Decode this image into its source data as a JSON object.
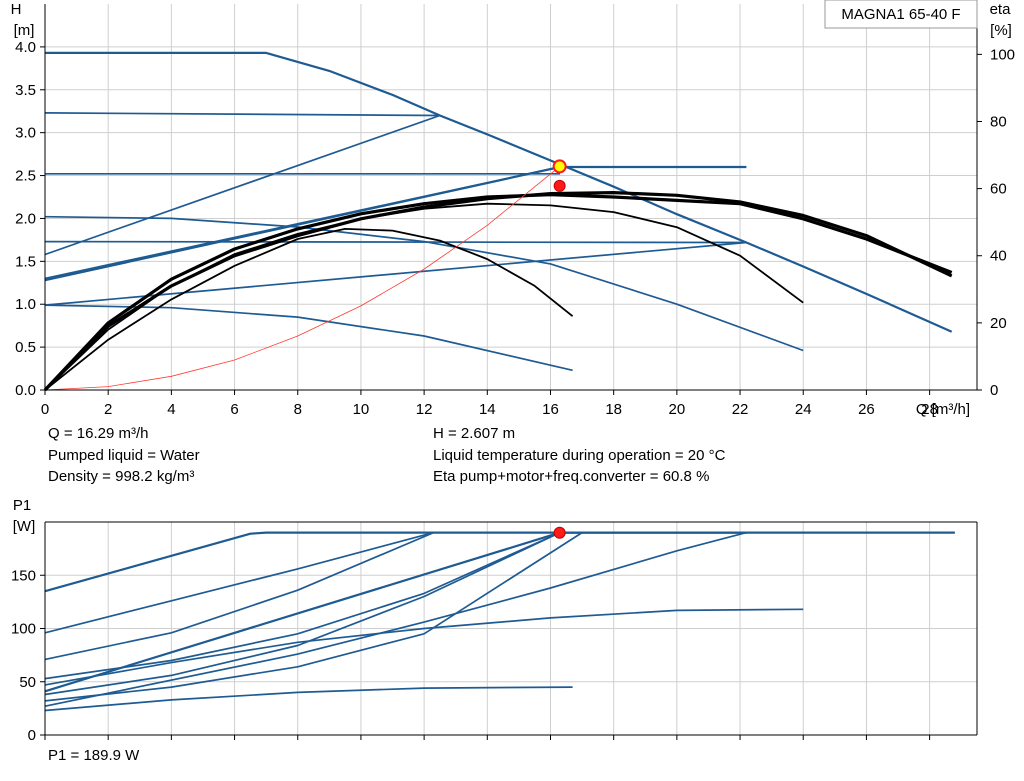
{
  "model_label": "MAGNA1 65-40 F",
  "info": {
    "q": "Q = 16.29 m³/h",
    "h": "H = 2.607 m",
    "liquid": "Pumped liquid = Water",
    "temperature": "Liquid temperature during operation = 20 °C",
    "density": "Density = 998.2 kg/m³",
    "eta": "Eta pump+motor+freq.converter = 60.8 %",
    "p1": "P1 = 189.9 W"
  },
  "chart_data": [
    {
      "type": "line",
      "title": "",
      "xlabel": "Q [m³/h]",
      "ylabel": [
        "H",
        "[m]"
      ],
      "y2label": [
        "eta",
        "[%]"
      ],
      "xlim": [
        0,
        29.5
      ],
      "ylim": [
        0,
        4.5
      ],
      "y2lim": [
        0,
        115
      ],
      "xticks": [
        "0",
        "2",
        "4",
        "6",
        "8",
        "10",
        "12",
        "14",
        "16",
        "18",
        "20",
        "22",
        "24",
        "26",
        "28"
      ],
      "yticks": [
        "0.0",
        "0.5",
        "1.0",
        "1.5",
        "2.0",
        "2.5",
        "3.0",
        "3.5",
        "4.0"
      ],
      "y2ticks": [
        "0",
        "20",
        "40",
        "60",
        "80",
        "100"
      ],
      "grid": true,
      "colors": {
        "curve": "#1f5b93",
        "eta": "#000000",
        "system": "#ff3b30",
        "point": "#ff1a1a",
        "point_fill_duty": "#ffff00"
      },
      "head_curves": [
        {
          "x": [
            0,
            7,
            9,
            11,
            12.5,
            14,
            16.5,
            18,
            20,
            22.2,
            24,
            26,
            28.7
          ],
          "y": [
            3.93,
            3.93,
            3.72,
            3.44,
            3.2,
            2.98,
            2.6,
            2.37,
            2.05,
            1.72,
            1.44,
            1.12,
            0.68
          ]
        },
        {
          "x": [
            0,
            12.5
          ],
          "y": [
            3.23,
            3.2
          ]
        },
        {
          "x": [
            0,
            16.3
          ],
          "y": [
            2.52,
            2.52
          ]
        },
        {
          "x": [
            0,
            22.2
          ],
          "y": [
            1.73,
            1.72
          ]
        },
        {
          "x": [
            0,
            12.5
          ],
          "y": [
            1.58,
            3.2
          ]
        },
        {
          "x": [
            0,
            16.3
          ],
          "y": [
            1.3,
            2.6
          ]
        },
        {
          "x": [
            0,
            22.2
          ],
          "y": [
            0.99,
            1.72
          ]
        },
        {
          "x": [
            0,
            16.3,
            22.2
          ],
          "y": [
            1.28,
            2.6,
            2.6
          ]
        },
        {
          "x": [
            0,
            4,
            8,
            12,
            16,
            20,
            24
          ],
          "y": [
            2.02,
            2.0,
            1.9,
            1.73,
            1.47,
            1.0,
            0.46
          ]
        },
        {
          "x": [
            0,
            4,
            8,
            12,
            16.7
          ],
          "y": [
            0.99,
            0.96,
            0.85,
            0.63,
            0.23
          ]
        }
      ],
      "eta_curves": [
        {
          "x": [
            0,
            2,
            4,
            6,
            8,
            10,
            12,
            14,
            16,
            18,
            20,
            22,
            24,
            26,
            28.7
          ],
          "y": [
            0,
            19,
            31,
            40,
            46,
            51,
            54.5,
            57,
            58.5,
            58.8,
            58,
            56,
            52,
            46,
            34
          ]
        },
        {
          "x": [
            0,
            2,
            4,
            6,
            8,
            10,
            12,
            14,
            16,
            18,
            20,
            22,
            24,
            26,
            28.7
          ],
          "y": [
            0,
            20,
            33,
            42,
            48,
            52.5,
            55.5,
            57.5,
            58.2,
            57.5,
            56.5,
            55.5,
            51,
            45,
            35
          ]
        },
        {
          "x": [
            0,
            2,
            4,
            6,
            8,
            10,
            12,
            14,
            16,
            18,
            20,
            22,
            24
          ],
          "y": [
            0,
            18,
            31,
            40.5,
            46.5,
            51,
            54,
            55.5,
            55,
            53,
            48.5,
            40,
            26
          ]
        },
        {
          "x": [
            0,
            2,
            4,
            6,
            8,
            9.5,
            11,
            12.5,
            14,
            15.5,
            16.7
          ],
          "y": [
            0,
            15,
            27,
            37,
            45,
            48,
            47.5,
            44.5,
            39,
            31,
            22
          ]
        }
      ],
      "system_curve": {
        "x": [
          0,
          2,
          4,
          6,
          8,
          10,
          12,
          14,
          16.29
        ],
        "y": [
          0,
          0.04,
          0.16,
          0.35,
          0.63,
          0.98,
          1.41,
          1.92,
          2.607
        ]
      },
      "duty_point": {
        "x": 16.29,
        "y": 2.607
      },
      "eta_point": {
        "x": 16.29,
        "y2": 60.8
      }
    },
    {
      "type": "line",
      "title": "",
      "ylabel": [
        "P1",
        "[W]"
      ],
      "xlim": [
        0,
        29.5
      ],
      "ylim": [
        0,
        200
      ],
      "yticks": [
        "0",
        "50",
        "100",
        "150"
      ],
      "grid": true,
      "power_curves": [
        {
          "x": [
            0,
            6.5,
            7,
            28.8
          ],
          "y": [
            135,
            189,
            190,
            190
          ]
        },
        {
          "x": [
            0,
            4,
            8,
            12.3
          ],
          "y": [
            96,
            126,
            156,
            190
          ]
        },
        {
          "x": [
            0,
            4,
            8,
            12.3
          ],
          "y": [
            71,
            96,
            136,
            190
          ]
        },
        {
          "x": [
            0,
            4,
            8,
            12,
            16.3
          ],
          "y": [
            53,
            70,
            95,
            133,
            190
          ]
        },
        {
          "x": [
            0,
            4,
            8,
            12,
            16.3
          ],
          "y": [
            38,
            56,
            84,
            130,
            190
          ]
        },
        {
          "x": [
            0,
            4,
            8,
            12,
            17
          ],
          "y": [
            32,
            45,
            64,
            95,
            190
          ]
        },
        {
          "x": [
            0,
            16.3,
            22.2
          ],
          "y": [
            41,
            190,
            190
          ]
        },
        {
          "x": [
            0,
            8,
            12,
            16,
            20,
            22.2
          ],
          "y": [
            27,
            76,
            106,
            138,
            173,
            190
          ]
        },
        {
          "x": [
            0,
            4,
            8,
            12,
            16,
            20,
            24
          ],
          "y": [
            47,
            68,
            87,
            100,
            110,
            117,
            118
          ]
        },
        {
          "x": [
            0,
            4,
            8,
            12,
            16.7
          ],
          "y": [
            23,
            33,
            40,
            44,
            45
          ]
        }
      ],
      "duty_point": {
        "x": 16.29,
        "y": 189.9
      }
    }
  ]
}
